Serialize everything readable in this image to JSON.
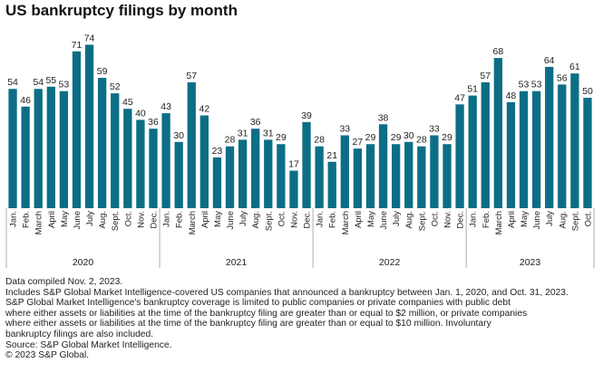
{
  "chart_data": {
    "type": "bar",
    "title": "US bankruptcy filings by month",
    "color": "#0c6e86",
    "categories": [
      "Jan.",
      "Feb.",
      "March",
      "April",
      "May",
      "June",
      "July",
      "Aug.",
      "Sept.",
      "Oct.",
      "Nov.",
      "Dec.",
      "Jan.",
      "Feb.",
      "March",
      "April",
      "May",
      "June",
      "July",
      "Aug.",
      "Sept.",
      "Oct.",
      "Nov.",
      "Dec.",
      "Jan.",
      "Feb.",
      "March",
      "April",
      "May",
      "June",
      "July",
      "Aug.",
      "Sept.",
      "Oct.",
      "Nov.",
      "Dec.",
      "Jan.",
      "Feb.",
      "March",
      "April",
      "May",
      "June",
      "July",
      "Aug.",
      "Sept.",
      "Oct."
    ],
    "values": [
      54,
      46,
      54,
      55,
      53,
      71,
      74,
      59,
      52,
      45,
      40,
      36,
      43,
      30,
      57,
      42,
      23,
      28,
      31,
      36,
      31,
      29,
      17,
      39,
      28,
      21,
      33,
      27,
      29,
      38,
      29,
      30,
      28,
      33,
      29,
      47,
      51,
      57,
      68,
      48,
      53,
      53,
      64,
      56,
      61,
      50
    ],
    "groups": [
      {
        "label": "2020",
        "count": 12
      },
      {
        "label": "2021",
        "count": 12
      },
      {
        "label": "2022",
        "count": 12
      },
      {
        "label": "2023",
        "count": 10
      }
    ],
    "ylim": [
      0,
      80
    ]
  },
  "footer": {
    "compiled": "Data compiled Nov. 2, 2023.",
    "includes": "Includes S&P Global Market Intelligence-covered US companies that announced a bankruptcy between Jan. 1, 2020, and Oct. 31, 2023.",
    "coverage_1": "S&P Global Market Intelligence's bankruptcy coverage is limited to public companies or private companies with public debt",
    "coverage_2": "where either assets or liabilities at the time of the bankruptcy filing are greater than or equal to $2 million, or private companies",
    "coverage_3": "where either assets or liabilities at the time of the bankruptcy filing are greater than or equal to $10 million. Involuntary",
    "coverage_4": "bankruptcy filings are also included.",
    "source": "Source: S&P Global Market Intelligence.",
    "copyright": "© 2023 S&P Global."
  }
}
